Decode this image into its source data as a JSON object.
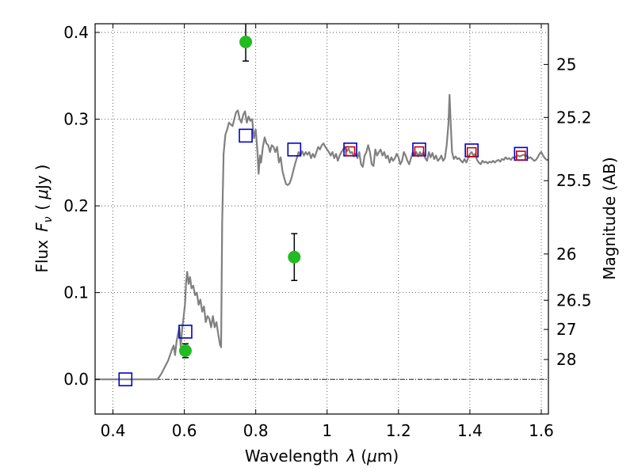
{
  "chart_data": {
    "type": "scatter",
    "title": "",
    "xlabel_prefix": "Wavelength",
    "xlabel_symbol": "λ",
    "xlabel_unit_open": "(",
    "xlabel_unit_mu": "μ",
    "xlabel_unit_rest": "m)",
    "ylabel_prefix": "Flux",
    "ylabel_symbol": "F",
    "ylabel_subscript": "ν",
    "ylabel_unit_open": "(",
    "ylabel_unit_mu": "μ",
    "ylabel_unit_rest": "Jy",
    "ylabel_unit_close": ")",
    "y2label": "Magnitude (AB)",
    "xlim": [
      0.35,
      1.62
    ],
    "ylim": [
      -0.04,
      0.41
    ],
    "grid": true,
    "x_ticks": [
      {
        "v": 0.4,
        "label": "0.4"
      },
      {
        "v": 0.6,
        "label": "0.6"
      },
      {
        "v": 0.8,
        "label": "0.8"
      },
      {
        "v": 1.0,
        "label": "1"
      },
      {
        "v": 1.2,
        "label": "1.2"
      },
      {
        "v": 1.4,
        "label": "1.4"
      },
      {
        "v": 1.6,
        "label": "1.6"
      }
    ],
    "y_ticks": [
      {
        "v": 0.0,
        "label": "0.0"
      },
      {
        "v": 0.1,
        "label": "0.1"
      },
      {
        "v": 0.2,
        "label": "0.2"
      },
      {
        "v": 0.3,
        "label": "0.3"
      },
      {
        "v": 0.4,
        "label": "0.4"
      }
    ],
    "mag_ticks": [
      {
        "v": 25.0,
        "label": "25"
      },
      {
        "v": 25.2,
        "label": "25.2"
      },
      {
        "v": 25.5,
        "label": "25.5"
      },
      {
        "v": 26.0,
        "label": "26"
      },
      {
        "v": 26.5,
        "label": "26.5"
      },
      {
        "v": 27.0,
        "label": "27"
      },
      {
        "v": 28.0,
        "label": "28"
      }
    ],
    "series": [
      {
        "kind": "line",
        "color": "#808080",
        "points": [
          [
            0.35,
            0.0
          ],
          [
            0.4,
            0.0
          ],
          [
            0.45,
            0.0
          ],
          [
            0.5,
            0.0
          ],
          [
            0.525,
            0.0
          ],
          [
            0.535,
            0.006
          ],
          [
            0.545,
            0.014
          ],
          [
            0.555,
            0.022
          ],
          [
            0.565,
            0.034
          ],
          [
            0.57,
            0.039
          ],
          [
            0.574,
            0.028
          ],
          [
            0.578,
            0.043
          ],
          [
            0.582,
            0.052
          ],
          [
            0.586,
            0.06
          ],
          [
            0.59,
            0.038
          ],
          [
            0.594,
            0.058
          ],
          [
            0.598,
            0.072
          ],
          [
            0.602,
            0.087
          ],
          [
            0.605,
            0.112
          ],
          [
            0.608,
            0.124
          ],
          [
            0.612,
            0.11
          ],
          [
            0.616,
            0.118
          ],
          [
            0.62,
            0.105
          ],
          [
            0.625,
            0.108
          ],
          [
            0.63,
            0.097
          ],
          [
            0.635,
            0.1
          ],
          [
            0.64,
            0.086
          ],
          [
            0.645,
            0.092
          ],
          [
            0.65,
            0.078
          ],
          [
            0.655,
            0.084
          ],
          [
            0.66,
            0.066
          ],
          [
            0.665,
            0.073
          ],
          [
            0.67,
            0.07
          ],
          [
            0.675,
            0.06
          ],
          [
            0.68,
            0.073
          ],
          [
            0.685,
            0.06
          ],
          [
            0.69,
            0.066
          ],
          [
            0.695,
            0.052
          ],
          [
            0.7,
            0.04
          ],
          [
            0.703,
            0.037
          ],
          [
            0.706,
            0.18
          ],
          [
            0.71,
            0.26
          ],
          [
            0.715,
            0.282
          ],
          [
            0.72,
            0.288
          ],
          [
            0.725,
            0.296
          ],
          [
            0.73,
            0.294
          ],
          [
            0.735,
            0.292
          ],
          [
            0.74,
            0.3
          ],
          [
            0.745,
            0.308
          ],
          [
            0.75,
            0.31
          ],
          [
            0.755,
            0.3
          ],
          [
            0.76,
            0.296
          ],
          [
            0.765,
            0.305
          ],
          [
            0.77,
            0.309
          ],
          [
            0.775,
            0.296
          ],
          [
            0.78,
            0.303
          ],
          [
            0.785,
            0.298
          ],
          [
            0.79,
            0.3
          ],
          [
            0.795,
            0.278
          ],
          [
            0.8,
            0.288
          ],
          [
            0.805,
            0.262
          ],
          [
            0.808,
            0.237
          ],
          [
            0.812,
            0.258
          ],
          [
            0.815,
            0.25
          ],
          [
            0.82,
            0.268
          ],
          [
            0.825,
            0.279
          ],
          [
            0.83,
            0.272
          ],
          [
            0.835,
            0.27
          ],
          [
            0.84,
            0.262
          ],
          [
            0.845,
            0.27
          ],
          [
            0.85,
            0.268
          ],
          [
            0.855,
            0.262
          ],
          [
            0.86,
            0.268
          ],
          [
            0.865,
            0.25
          ],
          [
            0.87,
            0.256
          ],
          [
            0.875,
            0.24
          ],
          [
            0.88,
            0.232
          ],
          [
            0.885,
            0.225
          ],
          [
            0.89,
            0.224
          ],
          [
            0.895,
            0.226
          ],
          [
            0.9,
            0.232
          ],
          [
            0.905,
            0.24
          ],
          [
            0.91,
            0.248
          ],
          [
            0.915,
            0.255
          ],
          [
            0.92,
            0.262
          ],
          [
            0.925,
            0.258
          ],
          [
            0.93,
            0.263
          ],
          [
            0.935,
            0.258
          ],
          [
            0.94,
            0.262
          ],
          [
            0.945,
            0.259
          ],
          [
            0.95,
            0.262
          ],
          [
            0.955,
            0.255
          ],
          [
            0.96,
            0.26
          ],
          [
            0.965,
            0.256
          ],
          [
            0.97,
            0.262
          ],
          [
            0.975,
            0.268
          ],
          [
            0.98,
            0.265
          ],
          [
            0.985,
            0.27
          ],
          [
            0.99,
            0.272
          ],
          [
            0.995,
            0.268
          ],
          [
            1.0,
            0.265
          ],
          [
            1.005,
            0.262
          ],
          [
            1.01,
            0.258
          ],
          [
            1.015,
            0.262
          ],
          [
            1.02,
            0.255
          ],
          [
            1.025,
            0.26
          ],
          [
            1.03,
            0.252
          ],
          [
            1.035,
            0.258
          ],
          [
            1.04,
            0.262
          ],
          [
            1.045,
            0.265
          ],
          [
            1.05,
            0.268
          ],
          [
            1.055,
            0.263
          ],
          [
            1.06,
            0.266
          ],
          [
            1.065,
            0.261
          ],
          [
            1.07,
            0.262
          ],
          [
            1.075,
            0.257
          ],
          [
            1.08,
            0.26
          ],
          [
            1.085,
            0.255
          ],
          [
            1.09,
            0.262
          ],
          [
            1.095,
            0.248
          ],
          [
            1.1,
            0.245
          ],
          [
            1.105,
            0.258
          ],
          [
            1.11,
            0.262
          ],
          [
            1.115,
            0.27
          ],
          [
            1.12,
            0.262
          ],
          [
            1.125,
            0.248
          ],
          [
            1.13,
            0.246
          ],
          [
            1.135,
            0.265
          ],
          [
            1.14,
            0.258
          ],
          [
            1.145,
            0.262
          ],
          [
            1.15,
            0.265
          ],
          [
            1.155,
            0.258
          ],
          [
            1.16,
            0.262
          ],
          [
            1.165,
            0.255
          ],
          [
            1.17,
            0.258
          ],
          [
            1.175,
            0.25
          ],
          [
            1.18,
            0.256
          ],
          [
            1.185,
            0.252
          ],
          [
            1.19,
            0.255
          ],
          [
            1.195,
            0.26
          ],
          [
            1.2,
            0.256
          ],
          [
            1.205,
            0.248
          ],
          [
            1.21,
            0.252
          ],
          [
            1.215,
            0.262
          ],
          [
            1.22,
            0.258
          ],
          [
            1.225,
            0.252
          ],
          [
            1.23,
            0.248
          ],
          [
            1.235,
            0.255
          ],
          [
            1.24,
            0.262
          ],
          [
            1.245,
            0.258
          ],
          [
            1.25,
            0.262
          ],
          [
            1.255,
            0.257
          ],
          [
            1.26,
            0.262
          ],
          [
            1.265,
            0.258
          ],
          [
            1.27,
            0.262
          ],
          [
            1.275,
            0.255
          ],
          [
            1.28,
            0.252
          ],
          [
            1.285,
            0.262
          ],
          [
            1.29,
            0.256
          ],
          [
            1.295,
            0.261
          ],
          [
            1.3,
            0.254
          ],
          [
            1.305,
            0.258
          ],
          [
            1.31,
            0.252
          ],
          [
            1.315,
            0.254
          ],
          [
            1.32,
            0.258
          ],
          [
            1.325,
            0.252
          ],
          [
            1.33,
            0.255
          ],
          [
            1.335,
            0.27
          ],
          [
            1.34,
            0.295
          ],
          [
            1.343,
            0.328
          ],
          [
            1.346,
            0.298
          ],
          [
            1.35,
            0.262
          ],
          [
            1.355,
            0.254
          ],
          [
            1.36,
            0.257
          ],
          [
            1.365,
            0.254
          ],
          [
            1.37,
            0.255
          ],
          [
            1.375,
            0.252
          ],
          [
            1.38,
            0.25
          ],
          [
            1.385,
            0.254
          ],
          [
            1.39,
            0.25
          ],
          [
            1.395,
            0.255
          ],
          [
            1.4,
            0.26
          ],
          [
            1.405,
            0.262
          ],
          [
            1.41,
            0.258
          ],
          [
            1.415,
            0.26
          ],
          [
            1.42,
            0.253
          ],
          [
            1.425,
            0.25
          ],
          [
            1.43,
            0.248
          ],
          [
            1.435,
            0.252
          ],
          [
            1.44,
            0.25
          ],
          [
            1.445,
            0.251
          ],
          [
            1.45,
            0.249
          ],
          [
            1.455,
            0.251
          ],
          [
            1.46,
            0.25
          ],
          [
            1.465,
            0.252
          ],
          [
            1.47,
            0.25
          ],
          [
            1.475,
            0.252
          ],
          [
            1.48,
            0.253
          ],
          [
            1.485,
            0.251
          ],
          [
            1.49,
            0.254
          ],
          [
            1.495,
            0.253
          ],
          [
            1.5,
            0.256
          ],
          [
            1.505,
            0.254
          ],
          [
            1.51,
            0.255
          ],
          [
            1.515,
            0.253
          ],
          [
            1.52,
            0.256
          ],
          [
            1.525,
            0.255
          ],
          [
            1.53,
            0.257
          ],
          [
            1.535,
            0.258
          ],
          [
            1.54,
            0.257
          ],
          [
            1.545,
            0.258
          ],
          [
            1.55,
            0.259
          ],
          [
            1.555,
            0.258
          ],
          [
            1.56,
            0.258
          ],
          [
            1.565,
            0.255
          ],
          [
            1.57,
            0.256
          ],
          [
            1.575,
            0.254
          ],
          [
            1.58,
            0.252
          ],
          [
            1.585,
            0.253
          ],
          [
            1.59,
            0.256
          ],
          [
            1.595,
            0.26
          ],
          [
            1.6,
            0.262
          ],
          [
            1.605,
            0.258
          ],
          [
            1.61,
            0.255
          ],
          [
            1.615,
            0.253
          ],
          [
            1.62,
            0.253
          ]
        ]
      },
      {
        "kind": "open-square",
        "color": "#0000cc",
        "points": [
          [
            0.435,
            0.0
          ],
          [
            0.603,
            0.055
          ],
          [
            0.772,
            0.281
          ],
          [
            0.908,
            0.265
          ],
          [
            1.065,
            0.265
          ],
          [
            1.258,
            0.265
          ],
          [
            1.405,
            0.264
          ],
          [
            1.543,
            0.26
          ]
        ]
      },
      {
        "kind": "open-square-small",
        "color": "#cc0000",
        "points": [
          [
            1.065,
            0.263
          ],
          [
            1.258,
            0.263
          ],
          [
            1.405,
            0.262
          ],
          [
            1.543,
            0.258
          ]
        ]
      },
      {
        "kind": "filled-circle-errorbar",
        "color": "#22bb22",
        "points": [
          [
            0.603,
            0.033,
            0.008
          ],
          [
            0.772,
            0.389,
            0.022
          ],
          [
            0.908,
            0.141,
            0.027
          ]
        ]
      }
    ]
  }
}
